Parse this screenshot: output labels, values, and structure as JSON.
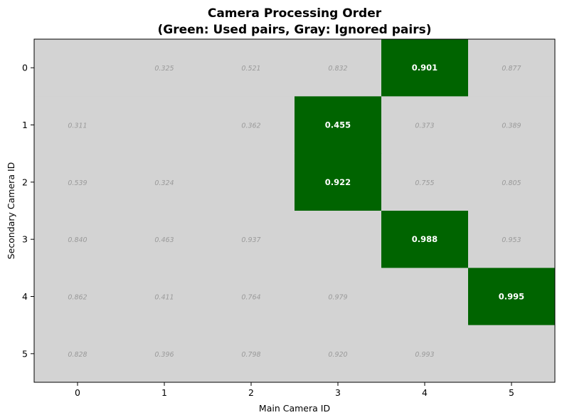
{
  "chart_data": {
    "type": "heatmap",
    "title": "Camera Processing Order",
    "subtitle": "(Green: Used pairs, Gray: Ignored pairs)",
    "xlabel": "Main Camera ID",
    "ylabel": "Secondary Camera ID",
    "x_categories": [
      "0",
      "1",
      "2",
      "3",
      "4",
      "5"
    ],
    "y_categories": [
      "0",
      "1",
      "2",
      "3",
      "4",
      "5"
    ],
    "colors": {
      "used": "#006400",
      "ignored": "#d3d3d3"
    },
    "cells": [
      [
        null,
        "0.325",
        "0.521",
        "0.832",
        "0.901",
        "0.877"
      ],
      [
        "0.311",
        null,
        "0.362",
        "0.455",
        "0.373",
        "0.389"
      ],
      [
        "0.539",
        "0.324",
        null,
        "0.922",
        "0.755",
        "0.805"
      ],
      [
        "0.840",
        "0.463",
        "0.937",
        null,
        "0.988",
        "0.953"
      ],
      [
        "0.862",
        "0.411",
        "0.764",
        "0.979",
        null,
        "0.995"
      ],
      [
        "0.828",
        "0.396",
        "0.798",
        "0.920",
        "0.993",
        null
      ]
    ],
    "used": [
      [
        0,
        4
      ],
      [
        1,
        3
      ],
      [
        2,
        3
      ],
      [
        3,
        4
      ],
      [
        4,
        5
      ]
    ]
  }
}
